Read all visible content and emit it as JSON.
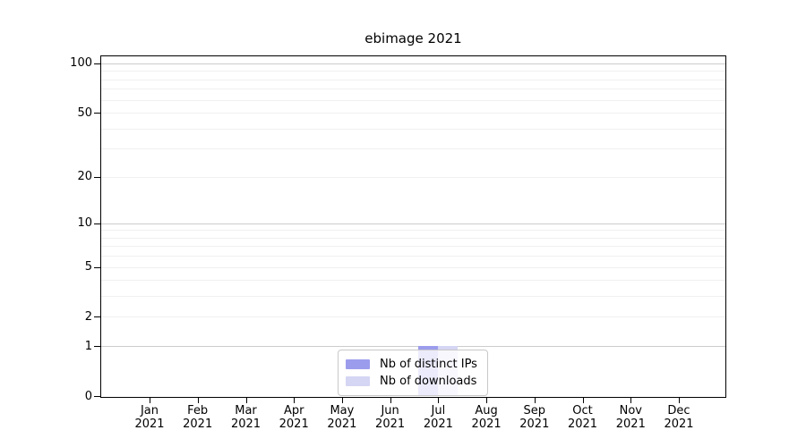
{
  "chart_data": {
    "type": "bar",
    "title": "ebimage 2021",
    "categories": [
      {
        "month": "Jan",
        "year": "2021"
      },
      {
        "month": "Feb",
        "year": "2021"
      },
      {
        "month": "Mar",
        "year": "2021"
      },
      {
        "month": "Apr",
        "year": "2021"
      },
      {
        "month": "May",
        "year": "2021"
      },
      {
        "month": "Jun",
        "year": "2021"
      },
      {
        "month": "Jul",
        "year": "2021"
      },
      {
        "month": "Aug",
        "year": "2021"
      },
      {
        "month": "Sep",
        "year": "2021"
      },
      {
        "month": "Oct",
        "year": "2021"
      },
      {
        "month": "Nov",
        "year": "2021"
      },
      {
        "month": "Dec",
        "year": "2021"
      }
    ],
    "series": [
      {
        "name": "Nb of distinct IPs",
        "color": "#9c9ced",
        "values": [
          0,
          0,
          0,
          0,
          0,
          0,
          1,
          0,
          0,
          0,
          0,
          0
        ]
      },
      {
        "name": "Nb of downloads",
        "color": "#d5d5f4",
        "values": [
          0,
          0,
          0,
          0,
          0,
          0,
          1,
          0,
          0,
          0,
          0,
          0
        ]
      }
    ],
    "yaxis": {
      "scale": "log10(1+y)",
      "min": 0,
      "max": 100,
      "tick_values": [
        100,
        50,
        20,
        10,
        5,
        2,
        1,
        0
      ],
      "decade_gridlines": [
        1,
        10,
        100
      ],
      "minor_gridlines": [
        2,
        3,
        4,
        5,
        6,
        7,
        8,
        9,
        20,
        30,
        40,
        50,
        60,
        70,
        80,
        90
      ]
    },
    "legend": {
      "position": "lower center"
    },
    "grid": true,
    "colors": {
      "grid_major": "#cccccc",
      "grid_minor": "#f0f0f0",
      "axis": "#000000",
      "background": "#ffffff"
    }
  }
}
